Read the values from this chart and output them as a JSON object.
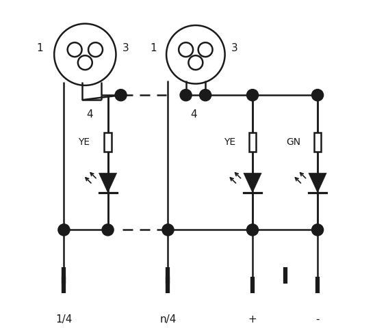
{
  "bg_color": "#ffffff",
  "line_color": "#1a1a1a",
  "lw": 1.8,
  "dot_r": 0.018,
  "connector_circle_r": 0.09,
  "pin_circle_r": 0.022,
  "fig_w": 5.67,
  "fig_h": 4.8,
  "labels": {
    "conn1_1": "1",
    "conn1_3": "3",
    "conn1_4": "4",
    "conn2_1": "1",
    "conn2_3": "3",
    "conn2_4": "4",
    "label_ye1": "YE",
    "label_ye2": "YE",
    "label_gn": "GN",
    "port1": "1/4",
    "port2": "n/4",
    "port3": "+",
    "port4": "-"
  }
}
